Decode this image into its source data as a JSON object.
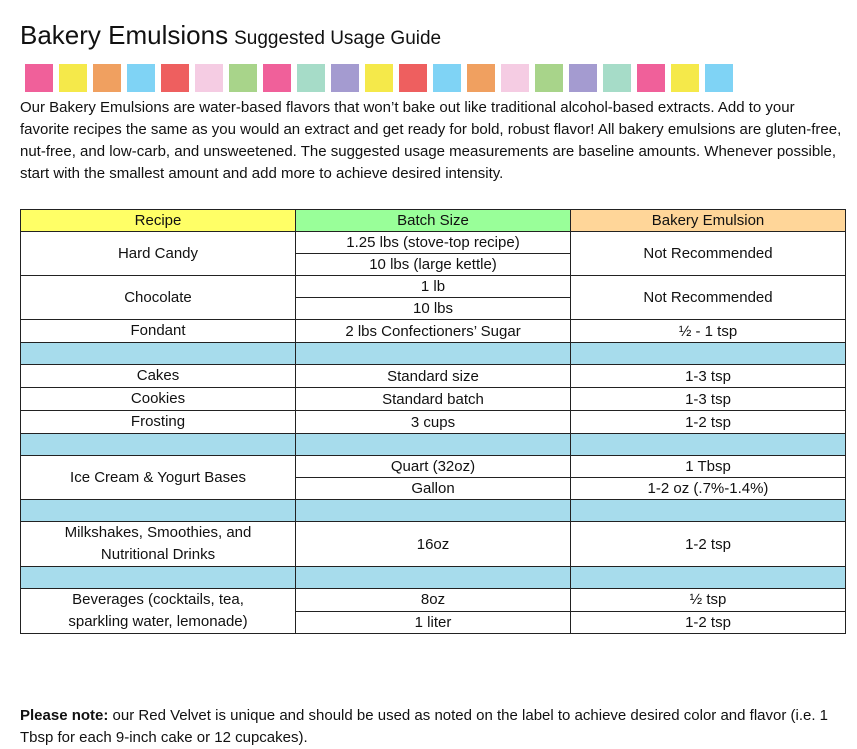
{
  "header": {
    "title": "Bakery Emulsions",
    "subtitle": "Suggested Usage Guide"
  },
  "intro": "Our Bakery Emulsions are water-based flavors that won’t bake out like traditional alcohol-based extracts. Add to your favorite recipes the same as you would an extract and get ready for bold, robust flavor! All bakery emulsions are gluten-free, nut-free, and low-carb, and unsweetened. The suggested usage measurements are baseline amounts. Whenever possible, start with the smallest amount and add more to achieve desired intensity.",
  "table": {
    "headers": [
      "Recipe",
      "Batch Size",
      "Bakery Emulsion"
    ],
    "sections": [
      [
        {
          "recipe": "Hard Candy",
          "batch": [
            "1.25 lbs (stove-top recipe)",
            "10 lbs (large kettle)"
          ],
          "emulsion": [
            "Not Recommended"
          ]
        },
        {
          "recipe": "Chocolate",
          "batch": [
            "1 lb",
            "10 lbs"
          ],
          "emulsion": [
            "Not Recommended"
          ]
        },
        {
          "recipe": "Fondant",
          "batch": [
            "2 lbs Confectioners’ Sugar"
          ],
          "emulsion": [
            "½ - 1 tsp"
          ]
        }
      ],
      [
        {
          "recipe": "Cakes",
          "batch": [
            "Standard size"
          ],
          "emulsion": [
            "1-3 tsp"
          ]
        },
        {
          "recipe": "Cookies",
          "batch": [
            "Standard batch"
          ],
          "emulsion": [
            "1-3 tsp"
          ]
        },
        {
          "recipe": "Frosting",
          "batch": [
            "3 cups"
          ],
          "emulsion": [
            "1-2 tsp"
          ]
        }
      ],
      [
        {
          "recipe": "Ice Cream & Yogurt Bases",
          "batch": [
            "Quart (32oz)",
            "Gallon"
          ],
          "emulsion": [
            "1 Tbsp",
            "1-2 oz (.7%-1.4%)"
          ]
        }
      ],
      [
        {
          "recipe": "Milkshakes, Smoothies, and Nutritional Drinks",
          "batch": [
            "16oz"
          ],
          "emulsion": [
            "1-2 tsp"
          ]
        }
      ],
      [
        {
          "recipe": "Beverages (cocktails, tea, sparkling water, lemonade)",
          "batch": [
            "8oz",
            "1 liter"
          ],
          "emulsion": [
            "½ tsp",
            "1-2 tsp"
          ]
        }
      ]
    ]
  },
  "note": {
    "label": "Please note:",
    "text": "our Red Velvet is unique and should be used as noted on the label to achieve desired color and flavor (i.e. 1 Tbsp for each 9-inch cake or 12 cupcakes)."
  }
}
